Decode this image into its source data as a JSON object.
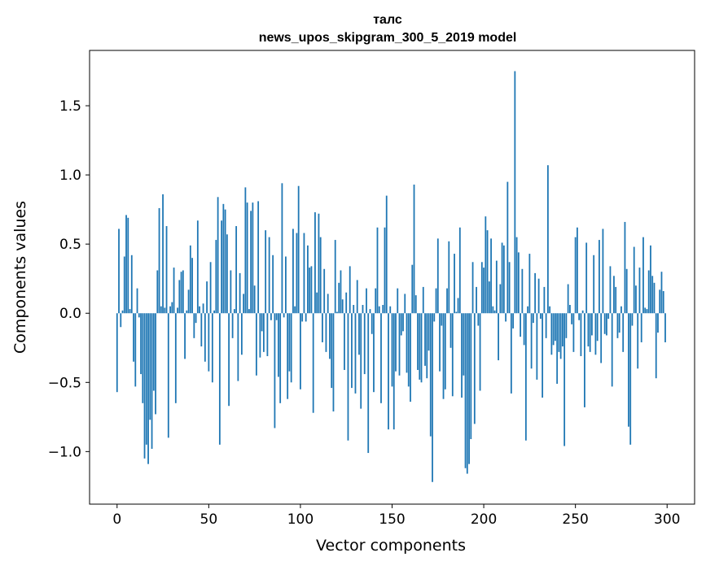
{
  "chart_data": {
    "type": "bar",
    "title": "талс",
    "subtitle": "news_upos_skipgram_300_5_2019 model",
    "xlabel": "Vector components",
    "ylabel": "Components values",
    "xlim": [
      -15,
      315
    ],
    "ylim": [
      -1.38,
      1.9
    ],
    "xticks": [
      0,
      50,
      100,
      150,
      200,
      250,
      300
    ],
    "yticks": [
      -1.0,
      -0.5,
      0.0,
      0.5,
      1.0,
      1.5
    ],
    "ytick_labels": [
      "−1.0",
      "−0.5",
      "0.0",
      "0.5",
      "1.0",
      "1.5"
    ],
    "bar_color": "#1f77b4",
    "grid": false,
    "values": [
      -0.57,
      0.61,
      -0.1,
      0.02,
      0.41,
      0.71,
      0.69,
      0.03,
      0.42,
      -0.35,
      -0.53,
      0.18,
      -0.03,
      -0.44,
      -0.65,
      -1.05,
      -0.95,
      -1.09,
      -0.77,
      -0.98,
      -0.56,
      -0.73,
      0.31,
      0.76,
      0.05,
      0.86,
      0.04,
      0.63,
      -0.9,
      0.05,
      0.08,
      0.33,
      -0.65,
      0.04,
      0.24,
      0.3,
      0.31,
      -0.33,
      0.02,
      0.17,
      0.49,
      0.4,
      -0.18,
      -0.07,
      0.67,
      0.05,
      -0.24,
      0.07,
      -0.35,
      0.23,
      -0.42,
      0.37,
      -0.5,
      0.02,
      0.53,
      0.84,
      -0.95,
      0.67,
      0.79,
      0.75,
      0.57,
      -0.67,
      0.31,
      -0.18,
      0.03,
      0.63,
      -0.49,
      0.29,
      -0.3,
      0.14,
      0.91,
      0.8,
      0.03,
      0.74,
      0.8,
      0.2,
      -0.45,
      0.81,
      -0.32,
      -0.13,
      -0.28,
      0.6,
      -0.31,
      0.55,
      -0.05,
      0.42,
      -0.83,
      -0.05,
      -0.46,
      -0.65,
      0.94,
      -0.03,
      0.41,
      -0.62,
      -0.42,
      -0.5,
      0.61,
      0.05,
      0.58,
      0.92,
      -0.55,
      -0.06,
      0.58,
      -0.06,
      0.49,
      0.33,
      0.34,
      -0.72,
      0.73,
      0.15,
      0.72,
      0.55,
      -0.21,
      0.32,
      -0.28,
      0.14,
      -0.33,
      -0.54,
      -0.71,
      0.53,
      0.01,
      0.22,
      0.31,
      0.1,
      -0.41,
      0.15,
      -0.92,
      0.34,
      -0.54,
      0.06,
      -0.58,
      0.24,
      -0.3,
      -0.69,
      0.06,
      -0.44,
      0.18,
      -1.01,
      0.03,
      -0.15,
      -0.57,
      0.18,
      0.62,
      0.05,
      -0.65,
      0.06,
      0.62,
      0.85,
      -0.84,
      0.05,
      -0.53,
      -0.84,
      -0.42,
      0.18,
      -0.45,
      -0.16,
      -0.13,
      0.14,
      -0.43,
      -0.53,
      -0.64,
      0.35,
      0.93,
      0.13,
      -0.41,
      -0.48,
      -0.5,
      0.19,
      -0.38,
      -0.47,
      -0.27,
      -0.89,
      -1.22,
      -0.06,
      0.18,
      0.54,
      -0.42,
      -0.09,
      -0.62,
      -0.55,
      0.18,
      0.52,
      -0.25,
      -0.6,
      0.43,
      0.01,
      0.11,
      0.62,
      -0.61,
      -0.45,
      -1.12,
      -1.16,
      -1.09,
      -0.91,
      0.37,
      -0.8,
      0.19,
      -0.09,
      -0.56,
      0.37,
      0.33,
      0.7,
      0.6,
      0.23,
      0.54,
      0.05,
      0.02,
      0.38,
      -0.34,
      0.21,
      0.51,
      0.49,
      -0.06,
      0.95,
      0.37,
      -0.58,
      -0.11,
      1.75,
      0.55,
      0.44,
      -0.17,
      0.32,
      -0.23,
      -0.92,
      0.05,
      0.43,
      -0.4,
      -0.07,
      0.29,
      -0.48,
      0.25,
      -0.04,
      -0.61,
      0.19,
      -0.18,
      1.07,
      0.05,
      -0.3,
      -0.23,
      -0.2,
      -0.51,
      -0.28,
      -0.33,
      -0.24,
      -0.96,
      -0.18,
      0.21,
      0.06,
      -0.08,
      -0.28,
      0.55,
      0.62,
      -0.05,
      -0.31,
      0.02,
      -0.68,
      0.51,
      -0.24,
      -0.28,
      -0.16,
      0.42,
      -0.3,
      -0.2,
      0.53,
      -0.36,
      0.61,
      -0.15,
      -0.16,
      -0.04,
      0.34,
      -0.53,
      0.27,
      0.19,
      -0.18,
      -0.14,
      0.05,
      -0.28,
      0.66,
      0.32,
      -0.82,
      -0.95,
      -0.09,
      0.48,
      0.2,
      -0.4,
      0.33,
      -0.21,
      0.55,
      0.04,
      0.03,
      0.31,
      0.49,
      0.27,
      0.22,
      -0.47,
      -0.14,
      0.17,
      0.3,
      0.16,
      -0.21
    ]
  }
}
